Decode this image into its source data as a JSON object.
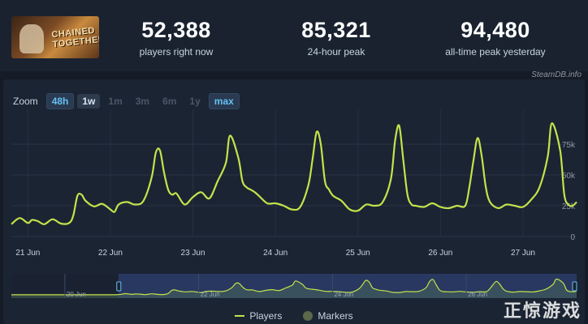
{
  "game": {
    "thumb_text_line1": "CHAINED",
    "thumb_text_line2": "TOGETHER"
  },
  "stats": [
    {
      "value": "52,388",
      "label": "players right now"
    },
    {
      "value": "85,321",
      "label": "24-hour peak"
    },
    {
      "value": "94,480",
      "label": "all-time peak yesterday"
    }
  ],
  "watermark": "SteamDB.info",
  "zoom": {
    "label": "Zoom",
    "buttons": [
      {
        "label": "48h",
        "state": "active"
      },
      {
        "label": "1w",
        "state": "selected"
      },
      {
        "label": "1m",
        "state": "disabled"
      },
      {
        "label": "3m",
        "state": "disabled"
      },
      {
        "label": "6m",
        "state": "disabled"
      },
      {
        "label": "1y",
        "state": "disabled"
      },
      {
        "label": "max",
        "state": "active"
      }
    ]
  },
  "legend": {
    "players": "Players",
    "markers": "Markers"
  },
  "corner_logo": "正惊游戏",
  "colors": {
    "line": "#c4e34a",
    "accent": "#66c0f4",
    "navigator": "#2c3c68"
  },
  "chart_data": {
    "type": "line",
    "title": "",
    "xlabel": "",
    "ylabel": "",
    "x_tick_labels": [
      "21 Jun",
      "22 Jun",
      "23 Jun",
      "24 Jun",
      "25 Jun",
      "26 Jun",
      "27 Jun"
    ],
    "y_tick_labels": [
      "0",
      "25k",
      "50k",
      "75k"
    ],
    "ylim": [
      0,
      100000
    ],
    "xlim": [
      20.8,
      27.65
    ],
    "series": [
      {
        "name": "Players",
        "x": [
          20.8,
          20.9,
          21.0,
          21.05,
          21.12,
          21.2,
          21.3,
          21.4,
          21.5,
          21.55,
          21.6,
          21.65,
          21.7,
          21.8,
          21.9,
          22.0,
          22.05,
          22.1,
          22.2,
          22.3,
          22.4,
          22.5,
          22.55,
          22.6,
          22.65,
          22.7,
          22.75,
          22.8,
          22.9,
          23.0,
          23.1,
          23.2,
          23.3,
          23.4,
          23.45,
          23.55,
          23.6,
          23.65,
          23.7,
          23.75,
          23.8,
          23.9,
          24.0,
          24.1,
          24.2,
          24.3,
          24.4,
          24.45,
          24.5,
          24.55,
          24.6,
          24.65,
          24.7,
          24.8,
          24.9,
          25.0,
          25.1,
          25.2,
          25.3,
          25.4,
          25.45,
          25.5,
          25.55,
          25.6,
          25.65,
          25.7,
          25.8,
          25.9,
          26.0,
          26.1,
          26.2,
          26.3,
          26.35,
          26.4,
          26.45,
          26.5,
          26.55,
          26.6,
          26.7,
          26.8,
          26.9,
          27.0,
          27.1,
          27.2,
          27.3,
          27.35,
          27.45,
          27.5,
          27.55,
          27.6,
          27.65
        ],
        "values": [
          10000,
          15000,
          11000,
          13500,
          12500,
          10000,
          14000,
          10500,
          11000,
          17000,
          33000,
          34000,
          29000,
          24500,
          26500,
          22000,
          20000,
          26000,
          28000,
          26000,
          29000,
          48000,
          68000,
          70000,
          52000,
          38000,
          34000,
          35000,
          26000,
          32000,
          36000,
          31000,
          45000,
          60000,
          82000,
          64000,
          45000,
          40000,
          38000,
          36000,
          33000,
          27000,
          27000,
          25000,
          22000,
          24000,
          42000,
          63000,
          85000,
          75000,
          45000,
          38000,
          33000,
          29000,
          22000,
          21000,
          26000,
          25000,
          28000,
          47000,
          78000,
          90000,
          62000,
          34000,
          26000,
          25000,
          24000,
          27000,
          24000,
          23000,
          25000,
          25000,
          40000,
          62000,
          80000,
          65000,
          40000,
          28000,
          23000,
          26000,
          25000,
          24000,
          30000,
          40000,
          65000,
          92000,
          70000,
          34000,
          26000,
          25000,
          28000
        ]
      }
    ]
  }
}
